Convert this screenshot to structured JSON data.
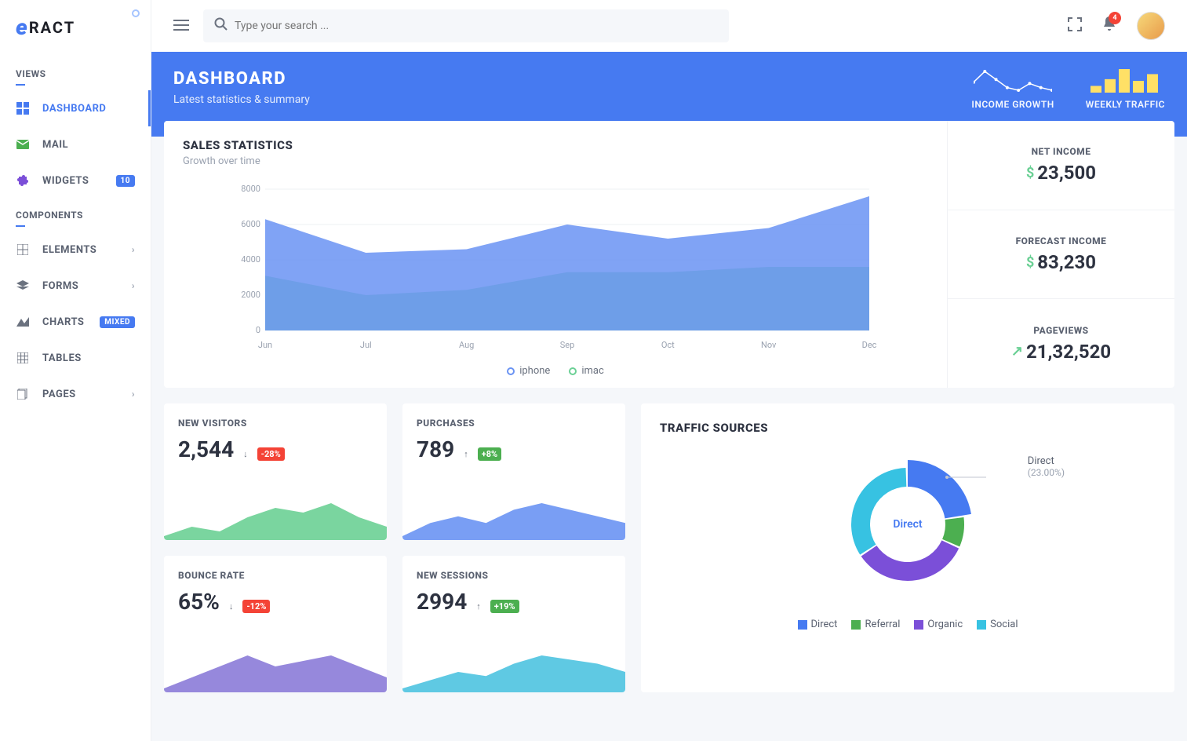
{
  "logo": {
    "mark": "e",
    "text": "RACT"
  },
  "sidebar": {
    "section1": "VIEWS",
    "section2": "COMPONENTS",
    "items": [
      {
        "label": "DASHBOARD",
        "icon": "dashboard-icon",
        "active": true
      },
      {
        "label": "MAIL",
        "icon": "mail-icon"
      },
      {
        "label": "WIDGETS",
        "icon": "puzzle-icon",
        "badge": "10"
      }
    ],
    "items2": [
      {
        "label": "ELEMENTS",
        "icon": "grid-icon",
        "chevron": true
      },
      {
        "label": "FORMS",
        "icon": "layers-icon",
        "chevron": true
      },
      {
        "label": "CHARTS",
        "icon": "peak-icon",
        "badge": "MIXED"
      },
      {
        "label": "TABLES",
        "icon": "table-icon"
      },
      {
        "label": "PAGES",
        "icon": "pages-icon",
        "chevron": true
      }
    ]
  },
  "topbar": {
    "search_placeholder": "Type your search ...",
    "notif_badge": "4"
  },
  "hero": {
    "title": "DASHBOARD",
    "subtitle": "Latest statistics & summary",
    "income_label": "INCOME GROWTH",
    "traffic_label": "WEEKLY TRAFFIC",
    "income_spark": {
      "type": "line",
      "points": [
        10,
        18,
        12,
        6,
        4,
        9,
        6,
        4
      ],
      "color": "#ffffff"
    },
    "traffic_spark": {
      "type": "bar",
      "values": [
        4,
        8,
        14,
        7,
        11
      ],
      "color": "#ffe066"
    }
  },
  "sales_chart": {
    "title": "SALES STATISTICS",
    "subtitle": "Growth over time",
    "type": "area",
    "x_labels": [
      "Jun",
      "Jul",
      "Aug",
      "Sep",
      "Oct",
      "Nov",
      "Dec"
    ],
    "y_ticks": [
      0,
      2000,
      4000,
      6000,
      8000
    ],
    "ylim": [
      0,
      8000
    ],
    "series": [
      {
        "name": "iphone",
        "color": "#6a93f3",
        "fill": "#6a93f3",
        "opacity": 0.85,
        "values": [
          6300,
          4400,
          4600,
          6000,
          5200,
          5800,
          7600
        ]
      },
      {
        "name": "imac",
        "color": "#6bd095",
        "fill": "#6bd095",
        "opacity": 0.8,
        "values": [
          3100,
          2000,
          2300,
          3300,
          3300,
          3600,
          3600
        ]
      }
    ],
    "legend": [
      "iphone",
      "imac"
    ],
    "grid_color": "#eef0f3",
    "background_color": "#ffffff",
    "axis_color": "#9aa2b0",
    "axis_fontsize": 11
  },
  "side_stats": [
    {
      "label": "NET INCOME",
      "prefix": "$",
      "value": "23,500",
      "prefix_color": "#6bd095"
    },
    {
      "label": "FORECAST INCOME",
      "prefix": "$",
      "value": "83,230",
      "prefix_color": "#6bd095"
    },
    {
      "label": "PAGEVIEWS",
      "prefix": "↗",
      "value": "21,32,520",
      "prefix_color": "#6bd095"
    }
  ],
  "small_cards": [
    {
      "label": "NEW VISITORS",
      "value": "2,544",
      "delta": "-28%",
      "delta_type": "neg",
      "spark_color": "#6bd095",
      "spark_values": [
        5,
        6,
        5.5,
        7,
        8,
        7.5,
        8.5,
        7,
        6
      ]
    },
    {
      "label": "PURCHASES",
      "value": "789",
      "delta": "+8%",
      "delta_type": "pos",
      "spark_color": "#6a93f3",
      "spark_values": [
        4,
        6,
        7,
        6,
        8,
        9,
        8,
        7,
        6
      ]
    },
    {
      "label": "BOUNCE RATE",
      "value": "65%",
      "delta": "-12%",
      "delta_type": "neg",
      "spark_color": "#8b7bd8",
      "spark_values": [
        5,
        6,
        7,
        8,
        7,
        7.5,
        8,
        7,
        6
      ]
    },
    {
      "label": "NEW SESSIONS",
      "value": "2994",
      "delta": "+19%",
      "delta_type": "pos",
      "spark_color": "#4ec3e0",
      "spark_values": [
        5,
        6,
        7,
        6.5,
        8,
        9,
        8.5,
        8,
        7
      ]
    }
  ],
  "traffic": {
    "title": "TRAFFIC SOURCES",
    "type": "donut",
    "center_label": "Direct",
    "callout": {
      "name": "Direct",
      "pct": "(23.00%)"
    },
    "slices": [
      {
        "name": "Direct",
        "value": 23,
        "color": "#467af1"
      },
      {
        "name": "Referral",
        "value": 9,
        "color": "#4caf50"
      },
      {
        "name": "Organic",
        "value": 34,
        "color": "#7b4fd8"
      },
      {
        "name": "Social",
        "value": 34,
        "color": "#37c2e2"
      }
    ],
    "legend": [
      "Direct",
      "Referral",
      "Organic",
      "Social"
    ]
  },
  "colors": {
    "primary": "#467af1",
    "green": "#6bd095",
    "purple": "#8b7bd8",
    "cyan": "#4ec3e0",
    "danger": "#f44336",
    "success": "#4caf50",
    "text": "#2d3240",
    "muted": "#9aa2b0"
  }
}
